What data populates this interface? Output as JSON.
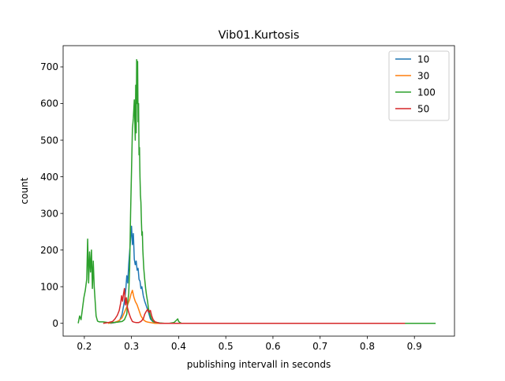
{
  "chart_data": {
    "type": "line",
    "title": "Vib01.Kurtosis",
    "xlabel": "publishing intervall in seconds",
    "ylabel": "count",
    "xlim": [
      0.155,
      0.985
    ],
    "ylim": [
      -35,
      758
    ],
    "x_ticks": [
      "0.2",
      "0.3",
      "0.4",
      "0.5",
      "0.6",
      "0.7",
      "0.8",
      "0.9"
    ],
    "x_tick_values": [
      0.2,
      0.3,
      0.4,
      0.5,
      0.6,
      0.7,
      0.8,
      0.9
    ],
    "y_ticks": [
      "0",
      "100",
      "200",
      "300",
      "400",
      "500",
      "600",
      "700"
    ],
    "y_tick_values": [
      0,
      100,
      200,
      300,
      400,
      500,
      600,
      700
    ],
    "grid": false,
    "legend_position": "top-right",
    "series": [
      {
        "name": "10",
        "color": "#1f77b4",
        "x": [
          0.255,
          0.265,
          0.275,
          0.28,
          0.285,
          0.288,
          0.29,
          0.292,
          0.294,
          0.296,
          0.298,
          0.3,
          0.302,
          0.304,
          0.306,
          0.308,
          0.31,
          0.312,
          0.314,
          0.316,
          0.318,
          0.32,
          0.322,
          0.325,
          0.328,
          0.332,
          0.336,
          0.34,
          0.345,
          0.35,
          0.36,
          0.4,
          0.5,
          0.6,
          0.7,
          0.8,
          0.88
        ],
        "y": [
          0,
          2,
          8,
          25,
          60,
          95,
          130,
          110,
          160,
          195,
          230,
          265,
          215,
          245,
          175,
          160,
          170,
          145,
          150,
          120,
          115,
          95,
          100,
          75,
          60,
          45,
          30,
          12,
          5,
          2,
          0,
          0,
          0,
          0,
          0,
          0,
          0
        ]
      },
      {
        "name": "30",
        "color": "#ff7f0e",
        "x": [
          0.25,
          0.262,
          0.272,
          0.28,
          0.285,
          0.29,
          0.293,
          0.296,
          0.299,
          0.302,
          0.305,
          0.308,
          0.312,
          0.316,
          0.32,
          0.325,
          0.33,
          0.335,
          0.34,
          0.35,
          0.4,
          0.5,
          0.6,
          0.7,
          0.8,
          0.88
        ],
        "y": [
          0,
          2,
          6,
          15,
          30,
          45,
          55,
          65,
          80,
          90,
          72,
          60,
          50,
          35,
          20,
          10,
          5,
          3,
          2,
          0,
          0,
          0,
          0,
          0,
          0,
          0
        ]
      },
      {
        "name": "100",
        "color": "#2ca02c",
        "x": [
          0.187,
          0.19,
          0.193,
          0.196,
          0.199,
          0.202,
          0.205,
          0.207,
          0.209,
          0.211,
          0.213,
          0.215,
          0.217,
          0.219,
          0.221,
          0.223,
          0.225,
          0.228,
          0.232,
          0.24,
          0.25,
          0.26,
          0.27,
          0.28,
          0.285,
          0.29,
          0.292,
          0.294,
          0.296,
          0.298,
          0.3,
          0.302,
          0.304,
          0.306,
          0.308,
          0.309,
          0.31,
          0.311,
          0.312,
          0.313,
          0.314,
          0.315,
          0.316,
          0.317,
          0.318,
          0.319,
          0.32,
          0.321,
          0.322,
          0.323,
          0.324,
          0.326,
          0.328,
          0.33,
          0.332,
          0.334,
          0.336,
          0.338,
          0.34,
          0.343,
          0.346,
          0.35,
          0.355,
          0.36,
          0.37,
          0.38,
          0.39,
          0.395,
          0.398,
          0.4,
          0.403,
          0.406,
          0.41,
          0.45,
          0.5,
          0.6,
          0.7,
          0.8,
          0.9,
          0.945
        ],
        "y": [
          0,
          20,
          10,
          40,
          70,
          90,
          120,
          230,
          110,
          195,
          140,
          200,
          95,
          170,
          100,
          60,
          20,
          6,
          4,
          4,
          2,
          2,
          3,
          5,
          10,
          25,
          60,
          80,
          150,
          300,
          420,
          530,
          560,
          610,
          500,
          650,
          520,
          720,
          600,
          715,
          550,
          600,
          460,
          480,
          400,
          350,
          330,
          280,
          240,
          250,
          200,
          150,
          120,
          95,
          75,
          60,
          40,
          30,
          20,
          10,
          5,
          3,
          2,
          1,
          0,
          0,
          2,
          8,
          12,
          5,
          2,
          0,
          0,
          0,
          0,
          0,
          0,
          0,
          0,
          0
        ]
      },
      {
        "name": "50",
        "color": "#d62728",
        "x": [
          0.24,
          0.25,
          0.26,
          0.265,
          0.27,
          0.274,
          0.277,
          0.279,
          0.281,
          0.283,
          0.285,
          0.287,
          0.289,
          0.291,
          0.294,
          0.298,
          0.302,
          0.306,
          0.31,
          0.315,
          0.32,
          0.325,
          0.328,
          0.331,
          0.334,
          0.337,
          0.34,
          0.343,
          0.346,
          0.35,
          0.36,
          0.4,
          0.5,
          0.6,
          0.7,
          0.8,
          0.88
        ],
        "y": [
          0,
          2,
          5,
          12,
          22,
          35,
          55,
          75,
          60,
          80,
          95,
          50,
          70,
          45,
          30,
          15,
          5,
          3,
          2,
          2,
          5,
          12,
          25,
          32,
          38,
          30,
          35,
          20,
          10,
          4,
          0,
          0,
          0,
          0,
          0,
          0,
          0
        ]
      }
    ]
  }
}
